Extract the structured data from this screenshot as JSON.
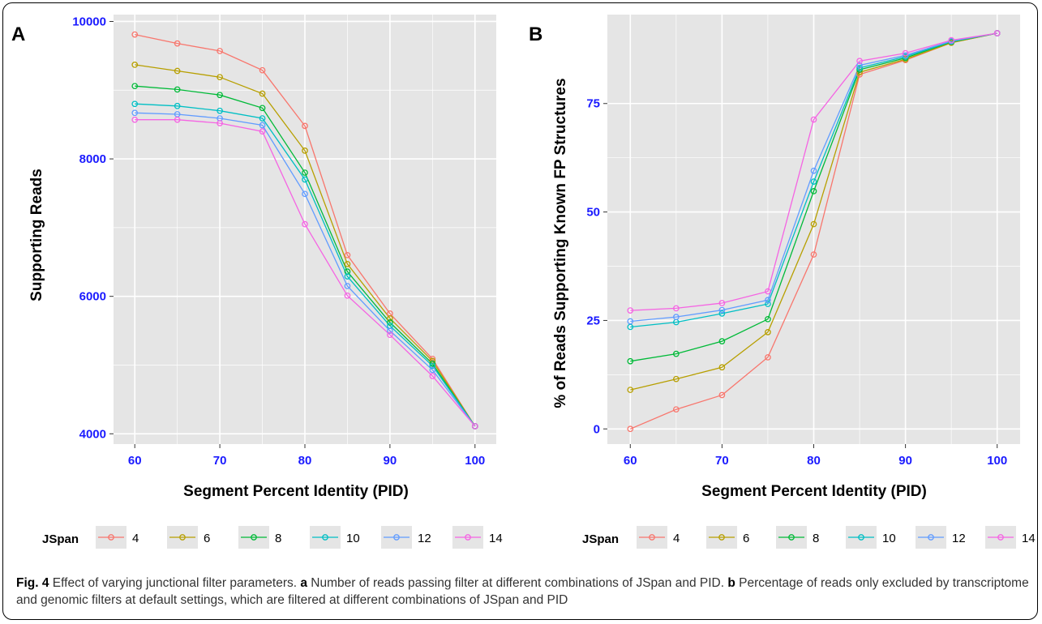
{
  "figure": {
    "caption_label": "Fig. 4",
    "caption_text": " Effect of varying junctional filter parameters. ",
    "caption_a_label": "a",
    "caption_a_text": " Number of reads passing filter at different combinations of JSpan and PID. ",
    "caption_b_label": "b",
    "caption_b_text": " Percentage of reads only excluded by transcriptome and genomic filters at default settings, which are filtered at different combinations of JSpan and PID"
  },
  "colors": {
    "panel_bg": "#e5e5e5",
    "grid": "#ffffff",
    "tick_label": "#1a1aff",
    "series": [
      "#f8766d",
      "#b79f00",
      "#00ba38",
      "#00bfc4",
      "#619cff",
      "#f564e3"
    ]
  },
  "chart_data": [
    {
      "panel": "A",
      "type": "line",
      "title": "",
      "xlabel": "Segment Percent Identity (PID)",
      "ylabel": "Supporting Reads",
      "xlim": [
        57.5,
        102.5
      ],
      "ylim": [
        3850,
        10100
      ],
      "x_ticks": [
        60,
        70,
        80,
        90,
        100
      ],
      "y_ticks": [
        4000,
        6000,
        8000,
        10000
      ],
      "grid": true,
      "legend_title": "JSpan",
      "legend_position": "bottom",
      "x": [
        60,
        65,
        70,
        75,
        80,
        85,
        90,
        95,
        100
      ],
      "series": [
        {
          "name": "4",
          "values": [
            9810,
            9680,
            9570,
            9290,
            8480,
            6600,
            5750,
            5090,
            4110
          ]
        },
        {
          "name": "6",
          "values": [
            9370,
            9280,
            9190,
            8950,
            8120,
            6470,
            5680,
            5060,
            4110
          ]
        },
        {
          "name": "8",
          "values": [
            9060,
            9010,
            8930,
            8740,
            7800,
            6360,
            5620,
            5020,
            4110
          ]
        },
        {
          "name": "10",
          "values": [
            8800,
            8770,
            8700,
            8590,
            7700,
            6290,
            5570,
            4990,
            4110
          ]
        },
        {
          "name": "12",
          "values": [
            8670,
            8650,
            8590,
            8490,
            7490,
            6150,
            5500,
            4930,
            4110
          ]
        },
        {
          "name": "14",
          "values": [
            8570,
            8570,
            8520,
            8400,
            7050,
            6010,
            5440,
            4840,
            4110
          ]
        }
      ]
    },
    {
      "panel": "B",
      "type": "line",
      "title": "",
      "xlabel": "Segment Percent Identity (PID)",
      "ylabel": "% of Reads Supporting Known FP Structures",
      "xlim": [
        57.5,
        102.5
      ],
      "ylim": [
        -3.5,
        95.5
      ],
      "x_ticks": [
        60,
        70,
        80,
        90,
        100
      ],
      "y_ticks": [
        0,
        25,
        50,
        75
      ],
      "grid": true,
      "legend_title": "JSpan",
      "legend_position": "bottom",
      "x": [
        60,
        65,
        70,
        75,
        80,
        85,
        90,
        95,
        100
      ],
      "series": [
        {
          "name": "4",
          "values": [
            0,
            4.5,
            7.8,
            16.5,
            40.2,
            81.7,
            85.0,
            89.0,
            91.2
          ]
        },
        {
          "name": "6",
          "values": [
            9.0,
            11.5,
            14.2,
            22.3,
            47.2,
            82.2,
            85.2,
            89.0,
            91.2
          ]
        },
        {
          "name": "8",
          "values": [
            15.6,
            17.3,
            20.2,
            25.3,
            54.8,
            82.8,
            85.5,
            89.2,
            91.2
          ]
        },
        {
          "name": "10",
          "values": [
            23.5,
            24.6,
            26.6,
            28.8,
            57.0,
            83.2,
            85.8,
            89.3,
            91.2
          ]
        },
        {
          "name": "12",
          "values": [
            24.8,
            25.8,
            27.4,
            29.7,
            59.5,
            83.8,
            86.1,
            89.4,
            91.2
          ]
        },
        {
          "name": "14",
          "values": [
            27.3,
            27.8,
            29.0,
            31.7,
            71.3,
            84.8,
            86.6,
            89.6,
            91.2
          ]
        }
      ]
    }
  ]
}
